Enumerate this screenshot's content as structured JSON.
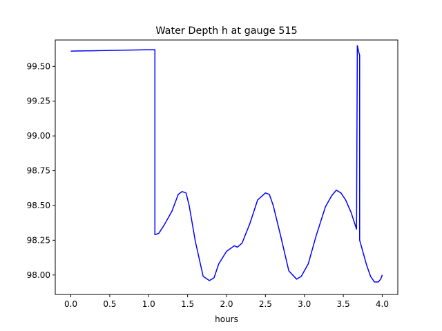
{
  "chart_data": {
    "type": "line",
    "title": "Water Depth h at gauge 515",
    "xlabel": "hours",
    "ylabel": "",
    "xlim": [
      -0.2,
      4.2
    ],
    "ylim": [
      97.86,
      99.69
    ],
    "xticks": [
      0.0,
      0.5,
      1.0,
      1.5,
      2.0,
      2.5,
      3.0,
      3.5,
      4.0
    ],
    "xtick_labels": [
      "0.0",
      "0.5",
      "1.0",
      "1.5",
      "2.0",
      "2.5",
      "3.0",
      "3.5",
      "4.0"
    ],
    "yticks": [
      98.0,
      98.25,
      98.5,
      98.75,
      99.0,
      99.25,
      99.5
    ],
    "ytick_labels": [
      "98.00",
      "98.25",
      "98.50",
      "98.75",
      "99.00",
      "99.25",
      "99.50"
    ],
    "grid": false,
    "series": [
      {
        "color": "#0000ff",
        "x": [
          0.0,
          0.5,
          1.0,
          1.08,
          1.08,
          1.13,
          1.2,
          1.3,
          1.38,
          1.43,
          1.48,
          1.52,
          1.6,
          1.7,
          1.78,
          1.84,
          1.9,
          2.0,
          2.1,
          2.14,
          2.2,
          2.3,
          2.4,
          2.5,
          2.55,
          2.6,
          2.7,
          2.8,
          2.9,
          2.96,
          3.05,
          3.15,
          3.27,
          3.35,
          3.41,
          3.47,
          3.53,
          3.6,
          3.67,
          3.68,
          3.7,
          3.71,
          3.71,
          3.8,
          3.85,
          3.9,
          3.95,
          3.98,
          4.0
        ],
        "y": [
          99.61,
          99.615,
          99.62,
          99.62,
          98.29,
          98.3,
          98.36,
          98.46,
          98.58,
          98.6,
          98.59,
          98.5,
          98.24,
          97.99,
          97.96,
          97.98,
          98.08,
          98.17,
          98.21,
          98.2,
          98.23,
          98.37,
          98.54,
          98.59,
          98.58,
          98.5,
          98.27,
          98.03,
          97.97,
          97.99,
          98.08,
          98.28,
          98.49,
          98.57,
          98.61,
          98.59,
          98.54,
          98.45,
          98.33,
          99.65,
          99.6,
          99.58,
          98.25,
          98.07,
          97.99,
          97.95,
          97.95,
          97.97,
          98.0
        ]
      }
    ]
  }
}
